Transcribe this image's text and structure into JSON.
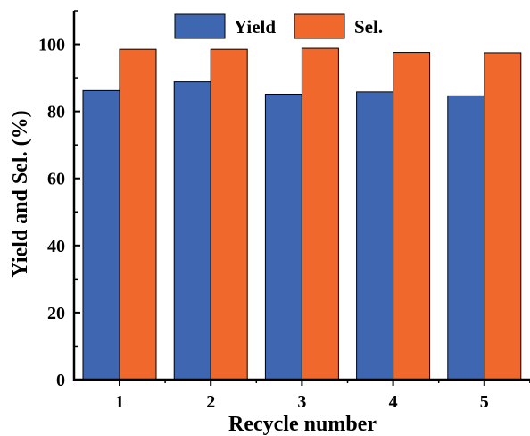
{
  "chart_data": {
    "type": "bar",
    "categories": [
      "1",
      "2",
      "3",
      "4",
      "5"
    ],
    "series": [
      {
        "name": "Yield",
        "values": [
          86.2,
          88.8,
          85.1,
          85.8,
          84.6
        ],
        "color": "#3f67b1"
      },
      {
        "name": "Sel.",
        "values": [
          98.5,
          98.5,
          98.8,
          97.6,
          97.5
        ],
        "color": "#f0682c"
      }
    ],
    "title": "",
    "xlabel": "Recycle number",
    "ylabel": "Yield and Sel. (%)",
    "ylim": [
      0,
      110
    ],
    "yticks": [
      "0",
      "20",
      "40",
      "60",
      "80",
      "100"
    ],
    "grid": false,
    "legend_position": "top"
  }
}
